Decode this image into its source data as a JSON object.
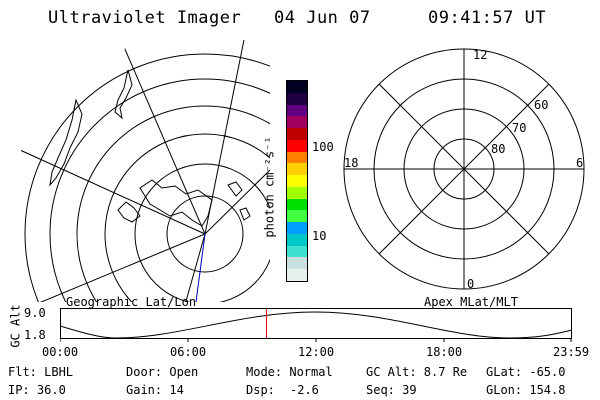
{
  "header": {
    "instrument": "Ultraviolet Imager",
    "date": "04 Jun 07",
    "time": "09:41:57 UT"
  },
  "colorbar": {
    "unit_label": "photon cm⁻²s⁻¹",
    "tick_100": "100",
    "tick_10": "10",
    "colors": [
      "#e8f0f0",
      "#c8e0e0",
      "#40e0d0",
      "#00c8c8",
      "#00a0ff",
      "#40ff40",
      "#00e000",
      "#a0ff00",
      "#ffff00",
      "#ffd000",
      "#ff8000",
      "#ff0000",
      "#c00000",
      "#a00060",
      "#600080",
      "#200040",
      "#000020"
    ]
  },
  "polar_labels": {
    "mlt_12": "12",
    "mlt_18": "18",
    "mlt_6": "6",
    "mlt_0": "0",
    "lat_60": "60",
    "lat_70": "70",
    "lat_80": "80"
  },
  "panel_labels": {
    "geographic": "Geographic Lat/Lon",
    "apex": "Apex MLat/MLT"
  },
  "altitude_plot": {
    "ylabel": "GC Alt",
    "ymax_label": "9.0",
    "ymin_label": "1.8",
    "xticks": [
      "00:00",
      "06:00",
      "12:00",
      "18:00",
      "23:59"
    ],
    "current_time_hours": 9.7
  },
  "info": {
    "flt": "Flt: LBHL",
    "door": "Door: Open",
    "mode": "Mode: Normal",
    "gc_alt": "GC Alt: 8.7 Re",
    "glat": "GLat: -65.0",
    "ip": "IP: 36.0",
    "gain": "Gain: 14",
    "dsp_label": "Dsp:",
    "dsp_value": "-2.6",
    "seq": "Seq: 39",
    "glon": "GLon: 154.8"
  }
}
